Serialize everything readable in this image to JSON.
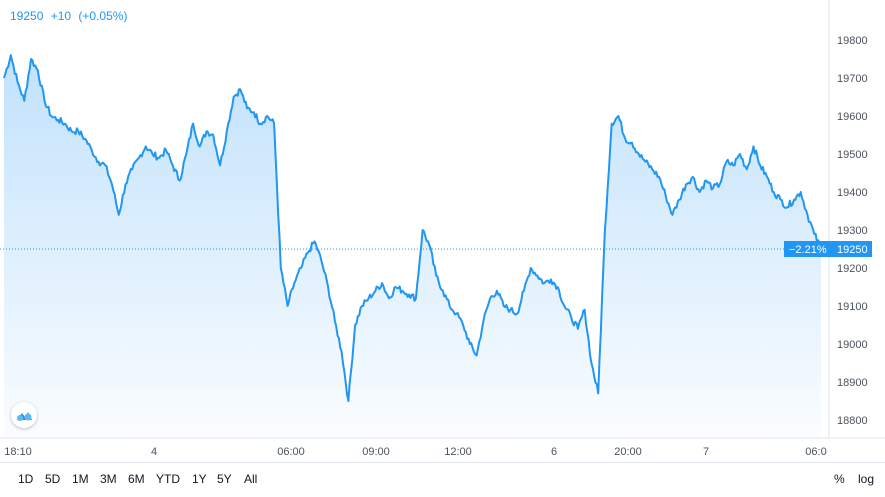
{
  "header": {
    "price": "19250",
    "change": "+10",
    "change_pct": "(+0.05%)"
  },
  "colors": {
    "accent": "#2196f3",
    "line": "#2196f3",
    "grid": "#e0e3eb",
    "text": "#4c525e"
  },
  "price_badge": {
    "change_pct": "−2.21%",
    "price": "19250"
  },
  "range_buttons": [
    "1D",
    "5D",
    "1M",
    "3M",
    "6M",
    "YTD",
    "1Y",
    "5Y",
    "All"
  ],
  "right_buttons": {
    "percent": "%",
    "log": "log"
  },
  "logo": {
    "icon": "cloud-logo-icon"
  },
  "chart_data": {
    "type": "area",
    "ylim": [
      18760,
      19870
    ],
    "yticks": [
      18800,
      18900,
      19000,
      19100,
      19200,
      19300,
      19400,
      19500,
      19600,
      19700,
      19800
    ],
    "ytick_labels": [
      "18800",
      "18900",
      "19000",
      "19100",
      "19200",
      "19300",
      "19400",
      "19500",
      "19600",
      "19700",
      "19800"
    ],
    "xtick_labels": [
      "18:10",
      "4",
      "06:00",
      "09:00",
      "12:00",
      "6",
      "20:00",
      "7",
      "06:0"
    ],
    "grid": false,
    "last_price": 19250,
    "series": [
      {
        "values": [
          19700,
          19760,
          19690,
          19640,
          19750,
          19720,
          19640,
          19600,
          19590,
          19580,
          19560,
          19560,
          19540,
          19510,
          19480,
          19470,
          19420,
          19340,
          19420,
          19460,
          19490,
          19520,
          19500,
          19490,
          19510,
          19470,
          19430,
          19500,
          19580,
          19520,
          19560,
          19550,
          19470,
          19560,
          19650,
          19670,
          19620,
          19610,
          19580,
          19600,
          19580,
          19200,
          19100,
          19160,
          19200,
          19240,
          19270,
          19220,
          19150,
          19060,
          18980,
          18850,
          19050,
          19100,
          19120,
          19140,
          19160,
          19120,
          19150,
          19140,
          19130,
          19120,
          19300,
          19260,
          19180,
          19140,
          19100,
          19080,
          19050,
          19000,
          18970,
          19060,
          19120,
          19140,
          19100,
          19090,
          19080,
          19140,
          19200,
          19180,
          19160,
          19170,
          19150,
          19100,
          19070,
          19040,
          19090,
          18950,
          18870,
          19300,
          19580,
          19600,
          19540,
          19530,
          19500,
          19480,
          19460,
          19440,
          19390,
          19340,
          19380,
          19420,
          19440,
          19400,
          19430,
          19410,
          19420,
          19480,
          19470,
          19500,
          19460,
          19520,
          19470,
          19440,
          19400,
          19380,
          19360,
          19380,
          19400,
          19340,
          19290,
          19250
        ]
      }
    ]
  }
}
